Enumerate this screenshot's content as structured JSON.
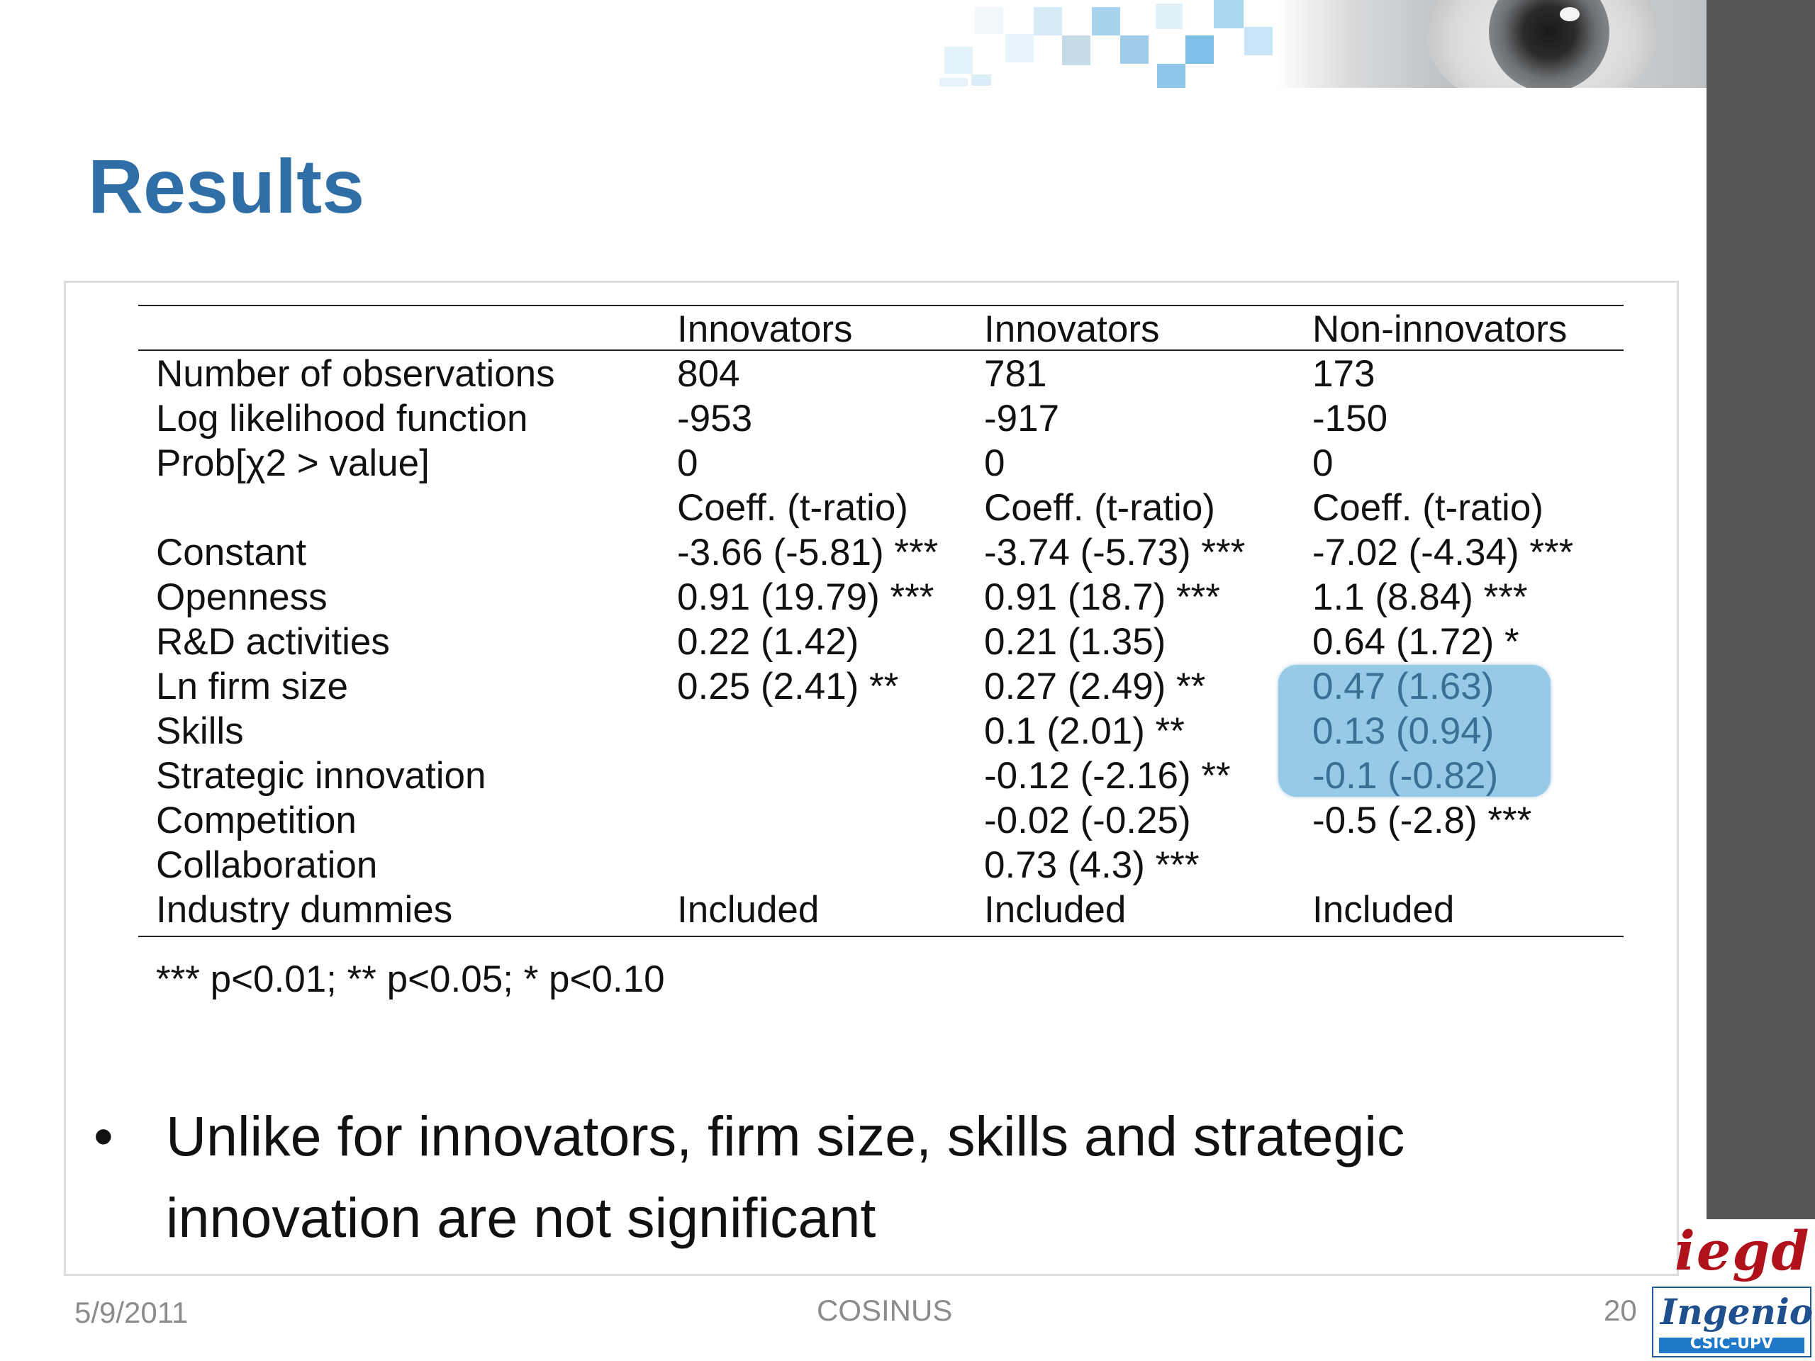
{
  "slide": {
    "title": "Results",
    "date": "5/9/2011",
    "center_footer": "COSINUS",
    "page_number": "20"
  },
  "table": {
    "header": [
      "",
      "Innovators",
      "Innovators",
      "Non-innovators"
    ],
    "rows": [
      [
        "Number of observations",
        "804",
        "781",
        "173"
      ],
      [
        "Log likelihood function",
        "-953",
        "-917",
        "-150"
      ],
      [
        "Prob[χ2 > value]",
        "0",
        "0",
        "0"
      ],
      [
        "",
        "Coeff. (t-ratio)",
        "Coeff. (t-ratio)",
        "Coeff. (t-ratio)"
      ],
      [
        "Constant",
        "-3.66 (-5.81) ***",
        "-3.74 (-5.73) ***",
        "-7.02 (-4.34) ***"
      ],
      [
        "Openness",
        "0.91 (19.79) ***",
        "0.91 (18.7) ***",
        "1.1 (8.84) ***"
      ],
      [
        "R&D activities",
        "0.22 (1.42)",
        "0.21 (1.35)",
        "0.64 (1.72) *"
      ],
      [
        "Ln firm size",
        "0.25 (2.41) **",
        "0.27 (2.49) **",
        "0.47 (1.63)"
      ],
      [
        "Skills",
        "",
        "0.1 (2.01) **",
        "0.13 (0.94)"
      ],
      [
        "Strategic innovation",
        "",
        "-0.12 (-2.16) **",
        "-0.1 (-0.82)"
      ],
      [
        "Competition",
        "",
        "-0.02 (-0.25)",
        "-0.5 (-2.8) ***"
      ],
      [
        "Collaboration",
        "",
        "0.73 (4.3) ***",
        ""
      ],
      [
        "Industry dummies",
        "Included",
        "Included",
        "Included"
      ]
    ],
    "footnote": "*** p<0.01; ** p<0.05; * p<0.10"
  },
  "bullet": {
    "symbol": "•",
    "text": "Unlike for innovators, firm size, skills and strategic innovation are not significant"
  },
  "logos": {
    "iegd": "iegd",
    "ingenio": "Ingenio",
    "ingenio_sub": "CSIC-UPV"
  },
  "colors": {
    "title": "#2f6ea7",
    "highlight": "#8ec6e4",
    "side_strip": "#555555"
  }
}
